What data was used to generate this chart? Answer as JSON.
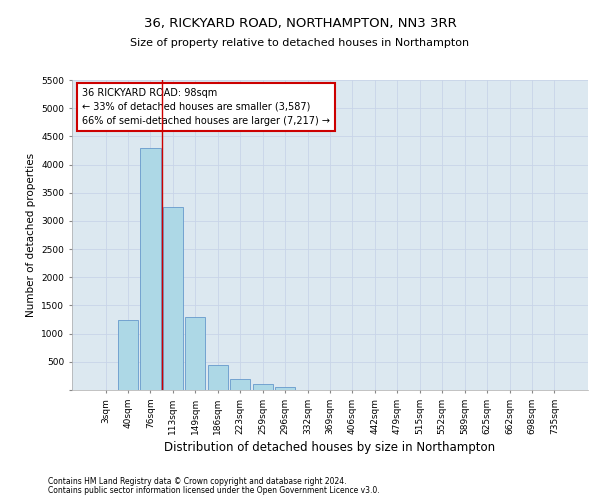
{
  "title1": "36, RICKYARD ROAD, NORTHAMPTON, NN3 3RR",
  "title2": "Size of property relative to detached houses in Northampton",
  "xlabel": "Distribution of detached houses by size in Northampton",
  "ylabel": "Number of detached properties",
  "categories": [
    "3sqm",
    "40sqm",
    "76sqm",
    "113sqm",
    "149sqm",
    "186sqm",
    "223sqm",
    "259sqm",
    "296sqm",
    "332sqm",
    "369sqm",
    "406sqm",
    "442sqm",
    "479sqm",
    "515sqm",
    "552sqm",
    "589sqm",
    "625sqm",
    "662sqm",
    "698sqm",
    "735sqm"
  ],
  "values": [
    0,
    1250,
    4300,
    3250,
    1300,
    450,
    200,
    100,
    60,
    0,
    0,
    0,
    0,
    0,
    0,
    0,
    0,
    0,
    0,
    0,
    0
  ],
  "bar_color": "#add8e6",
  "bar_edge_color": "#6699cc",
  "grid_color": "#c8d4e8",
  "background_color": "#dce8f0",
  "red_line_x": 2.5,
  "annotation_text": "36 RICKYARD ROAD: 98sqm\n← 33% of detached houses are smaller (3,587)\n66% of semi-detached houses are larger (7,217) →",
  "annotation_box_color": "#ffffff",
  "annotation_box_edge": "#cc0000",
  "ylim": [
    0,
    5500
  ],
  "yticks": [
    0,
    500,
    1000,
    1500,
    2000,
    2500,
    3000,
    3500,
    4000,
    4500,
    5000,
    5500
  ],
  "footer1": "Contains HM Land Registry data © Crown copyright and database right 2024.",
  "footer2": "Contains public sector information licensed under the Open Government Licence v3.0.",
  "title1_fontsize": 9.5,
  "title2_fontsize": 8,
  "xlabel_fontsize": 8.5,
  "ylabel_fontsize": 7.5,
  "tick_fontsize": 6.5,
  "footer_fontsize": 5.5
}
